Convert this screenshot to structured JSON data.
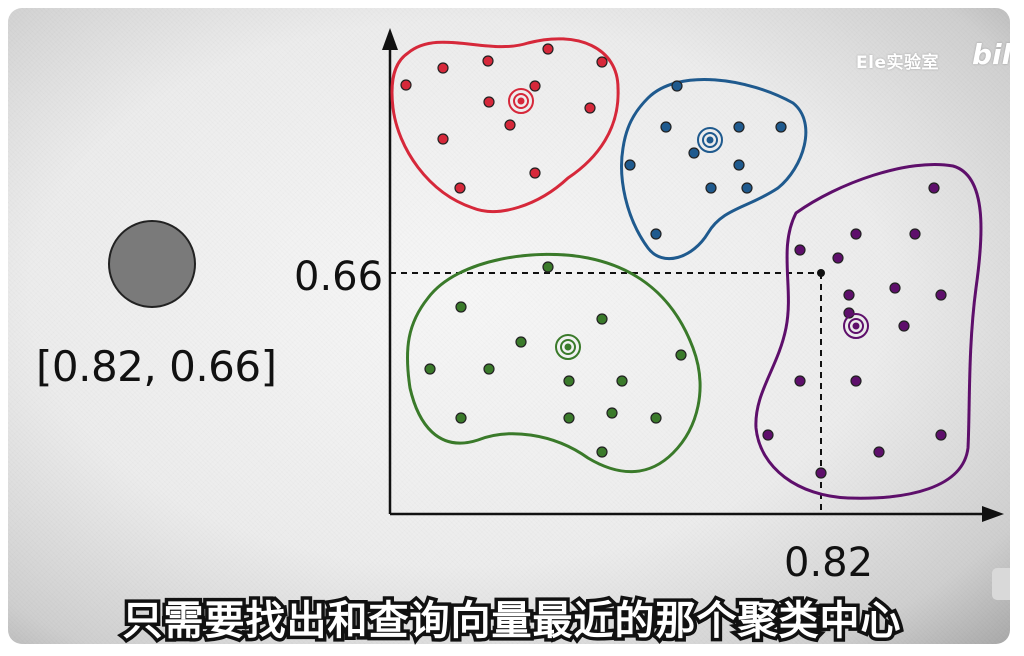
{
  "watermark": {
    "channel": "Ele实验室",
    "brand": "bili"
  },
  "query_point": {
    "label": "[0.82, 0.66]",
    "color": "#7a7a7a"
  },
  "axis": {
    "x_tick": "0.82",
    "y_tick": "0.66"
  },
  "subtitle": "只需要找出和查询向量最近的那个聚类中心",
  "clusters": [
    {
      "name": "red",
      "color": "#d6283a"
    },
    {
      "name": "blue",
      "color": "#1f5a8e"
    },
    {
      "name": "green",
      "color": "#3a7a2a"
    },
    {
      "name": "purple",
      "color": "#5e0f6b"
    }
  ]
}
